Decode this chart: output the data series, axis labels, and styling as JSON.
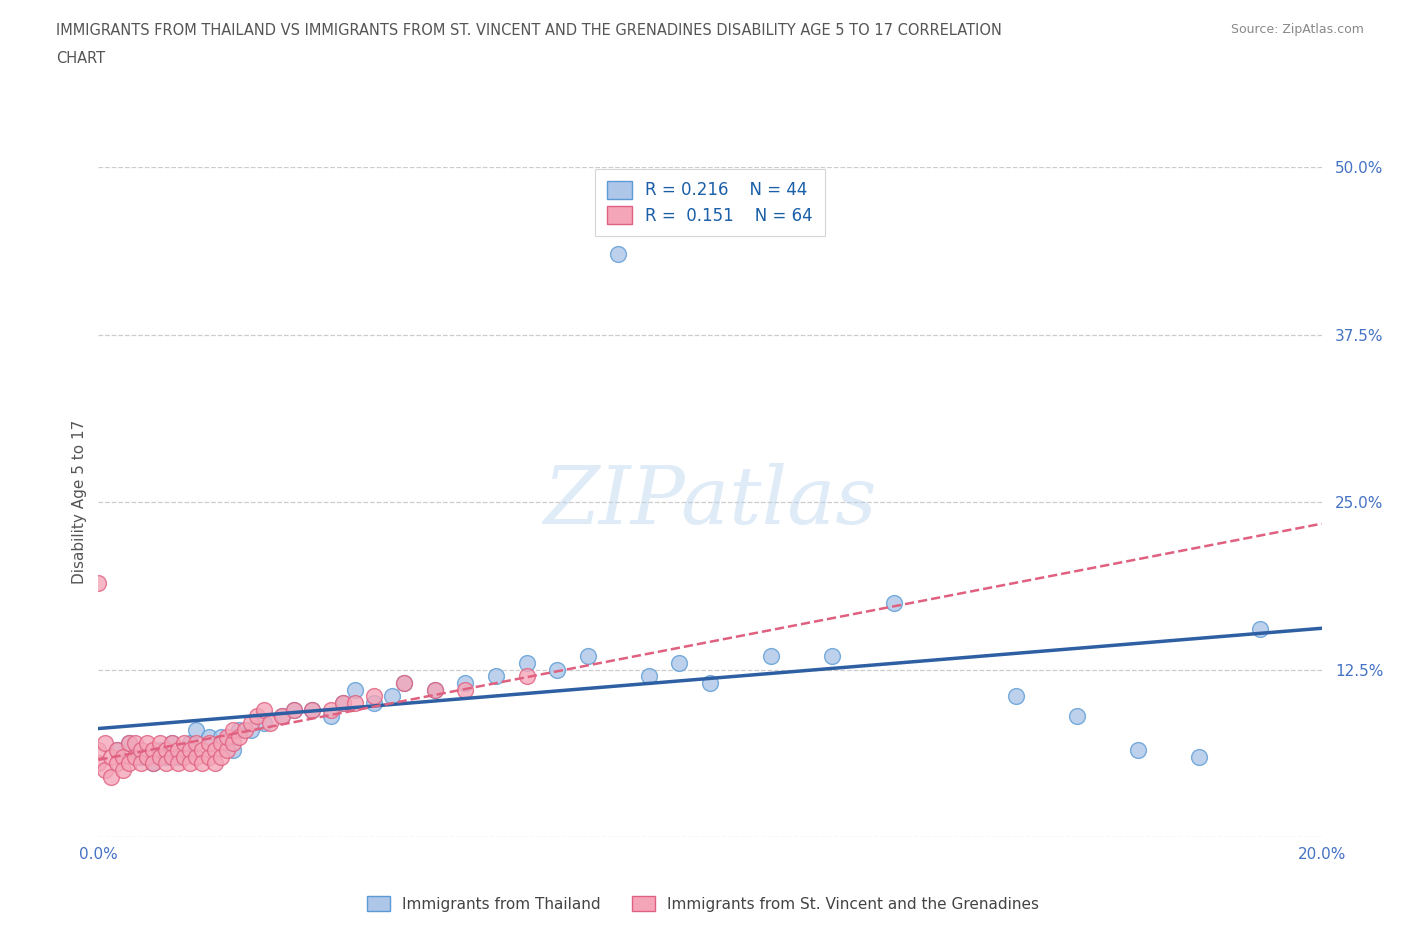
{
  "title_line1": "IMMIGRANTS FROM THAILAND VS IMMIGRANTS FROM ST. VINCENT AND THE GRENADINES DISABILITY AGE 5 TO 17 CORRELATION",
  "title_line2": "CHART",
  "source_text": "Source: ZipAtlas.com",
  "ylabel": "Disability Age 5 to 17",
  "xlim": [
    0.0,
    0.2
  ],
  "ylim": [
    0.0,
    0.5
  ],
  "xticks": [
    0.0,
    0.05,
    0.1,
    0.15,
    0.2
  ],
  "yticks": [
    0.0,
    0.125,
    0.25,
    0.375,
    0.5
  ],
  "grid_color": "#cccccc",
  "background_color": "#ffffff",
  "thailand_color": "#aec6e8",
  "thailand_edge": "#5b9bd5",
  "svgrenadines_color": "#f4a6b8",
  "svgrenadines_edge": "#e06080",
  "trend_thailand_color": "#2e5fa3",
  "trend_svg_color": "#e06080",
  "legend_label_thailand": "Immigrants from Thailand",
  "legend_label_svg": "Immigrants from St. Vincent and the Grenadines",
  "legend_R_thailand": "R = 0.216",
  "legend_N_thailand": "N = 44",
  "legend_R_svg": "R =  0.151",
  "legend_N_svg": "N = 64",
  "thailand_x": [
    0.003,
    0.005,
    0.007,
    0.009,
    0.01,
    0.011,
    0.012,
    0.013,
    0.014,
    0.015,
    0.016,
    0.018,
    0.02,
    0.022,
    0.023,
    0.025,
    0.027,
    0.03,
    0.032,
    0.035,
    0.038,
    0.04,
    0.042,
    0.045,
    0.048,
    0.05,
    0.055,
    0.06,
    0.065,
    0.07,
    0.075,
    0.08,
    0.085,
    0.09,
    0.095,
    0.1,
    0.11,
    0.12,
    0.13,
    0.15,
    0.16,
    0.17,
    0.18,
    0.19
  ],
  "thailand_y": [
    0.065,
    0.07,
    0.06,
    0.055,
    0.065,
    0.06,
    0.07,
    0.06,
    0.065,
    0.07,
    0.08,
    0.075,
    0.075,
    0.065,
    0.08,
    0.08,
    0.085,
    0.09,
    0.095,
    0.095,
    0.09,
    0.1,
    0.11,
    0.1,
    0.105,
    0.115,
    0.11,
    0.115,
    0.12,
    0.13,
    0.125,
    0.135,
    0.435,
    0.12,
    0.13,
    0.115,
    0.135,
    0.135,
    0.175,
    0.105,
    0.09,
    0.065,
    0.06,
    0.155
  ],
  "svg_x": [
    0.0,
    0.0,
    0.001,
    0.001,
    0.002,
    0.002,
    0.003,
    0.003,
    0.004,
    0.004,
    0.005,
    0.005,
    0.006,
    0.006,
    0.007,
    0.007,
    0.008,
    0.008,
    0.009,
    0.009,
    0.01,
    0.01,
    0.011,
    0.011,
    0.012,
    0.012,
    0.013,
    0.013,
    0.014,
    0.014,
    0.015,
    0.015,
    0.016,
    0.016,
    0.017,
    0.017,
    0.018,
    0.018,
    0.019,
    0.019,
    0.02,
    0.02,
    0.021,
    0.021,
    0.022,
    0.022,
    0.023,
    0.024,
    0.025,
    0.026,
    0.027,
    0.028,
    0.03,
    0.032,
    0.035,
    0.038,
    0.04,
    0.042,
    0.045,
    0.05,
    0.0,
    0.055,
    0.06,
    0.07
  ],
  "svg_y": [
    0.055,
    0.065,
    0.05,
    0.07,
    0.045,
    0.06,
    0.065,
    0.055,
    0.06,
    0.05,
    0.07,
    0.055,
    0.06,
    0.07,
    0.065,
    0.055,
    0.06,
    0.07,
    0.065,
    0.055,
    0.07,
    0.06,
    0.065,
    0.055,
    0.06,
    0.07,
    0.065,
    0.055,
    0.06,
    0.07,
    0.065,
    0.055,
    0.06,
    0.07,
    0.065,
    0.055,
    0.06,
    0.07,
    0.065,
    0.055,
    0.07,
    0.06,
    0.065,
    0.075,
    0.07,
    0.08,
    0.075,
    0.08,
    0.085,
    0.09,
    0.095,
    0.085,
    0.09,
    0.095,
    0.095,
    0.095,
    0.1,
    0.1,
    0.105,
    0.115,
    0.19,
    0.11,
    0.11,
    0.12
  ]
}
